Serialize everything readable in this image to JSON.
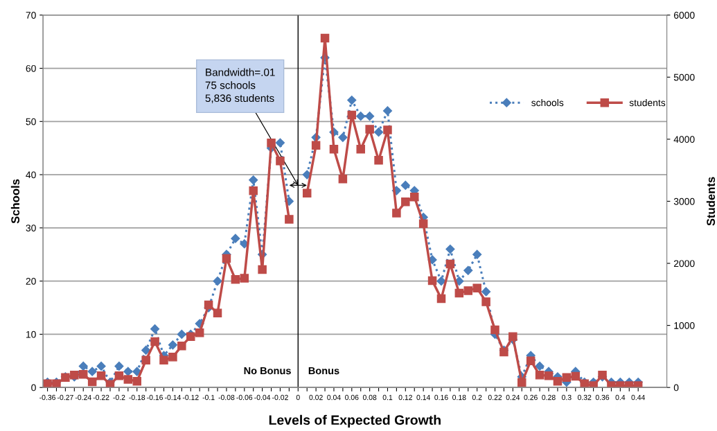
{
  "chart_data": {
    "type": "line",
    "xlabel": "Levels of Expected Growth",
    "ylabel": "Schools",
    "y2label": "Students",
    "categories": [
      "-0.36",
      null,
      "-0.27",
      null,
      "-0.24",
      null,
      "-0.22",
      null,
      "-0.2",
      null,
      "-0.18",
      null,
      "-0.16",
      null,
      "-0.14",
      null,
      "-0.12",
      null,
      "-0.1",
      null,
      "-0.08",
      null,
      "-0.06",
      null,
      "-0.04",
      null,
      "-0.02",
      null,
      "0",
      null,
      "0.02",
      null,
      "0.04",
      null,
      "0.06",
      null,
      "0.08",
      null,
      "0.1",
      null,
      "0.12",
      null,
      "0.14",
      null,
      "0.16",
      null,
      "0.18",
      null,
      "0.2",
      null,
      "0.22",
      null,
      "0.24",
      null,
      "0.26",
      null,
      "0.28",
      null,
      "0.3",
      null,
      "0.32",
      null,
      "0.36",
      null,
      "0.4",
      null,
      "0.44"
    ],
    "series": [
      {
        "name": "schools",
        "color": "#4a7ebb",
        "marker": "diamond",
        "line_style": "dotted",
        "values": [
          1,
          1,
          2,
          2,
          4,
          3,
          4,
          1,
          4,
          3,
          3,
          7,
          11,
          6,
          8,
          10,
          10,
          12,
          15,
          20,
          25,
          28,
          27,
          39,
          25,
          45,
          46,
          35,
          null,
          40,
          47,
          62,
          48,
          47,
          54,
          51,
          51,
          48,
          52,
          37,
          38,
          37,
          32,
          24,
          20,
          26,
          20,
          22,
          25,
          18,
          10,
          7,
          9,
          2,
          6,
          4,
          3,
          2,
          1,
          3,
          1,
          1,
          2,
          1,
          1,
          1,
          1
        ]
      },
      {
        "name": "students",
        "color": "#be4b48",
        "marker": "square",
        "line_style": "solid",
        "axis": "y2",
        "values": [
          60,
          60,
          160,
          200,
          210,
          90,
          190,
          50,
          190,
          130,
          100,
          440,
          740,
          440,
          490,
          670,
          820,
          880,
          1330,
          1200,
          2080,
          1740,
          1760,
          3170,
          1900,
          3940,
          3650,
          2710,
          null,
          3130,
          3900,
          5630,
          3840,
          3360,
          4390,
          3840,
          4160,
          3660,
          4150,
          2810,
          2990,
          3070,
          2640,
          1720,
          1430,
          1990,
          1520,
          1560,
          1600,
          1380,
          930,
          570,
          820,
          80,
          430,
          200,
          190,
          100,
          160,
          180,
          60,
          30,
          200,
          30,
          30,
          30,
          30
        ]
      }
    ],
    "ylim": [
      0,
      70
    ],
    "yticks": [
      0,
      10,
      20,
      30,
      40,
      50,
      60,
      70
    ],
    "y2lim": [
      0,
      6000
    ],
    "y2ticks": [
      0,
      1000,
      2000,
      3000,
      4000,
      5000,
      6000
    ],
    "grid": "y",
    "legend": "top right",
    "ref_lines": [
      {
        "axis": "x",
        "value": "0",
        "color": "#000000"
      }
    ],
    "annotations": [
      {
        "text": "Bandwidth=.01\n75 schools\n5,836 students",
        "x": "0",
        "y": 38
      },
      "No Bonus",
      "Bonus"
    ]
  }
}
